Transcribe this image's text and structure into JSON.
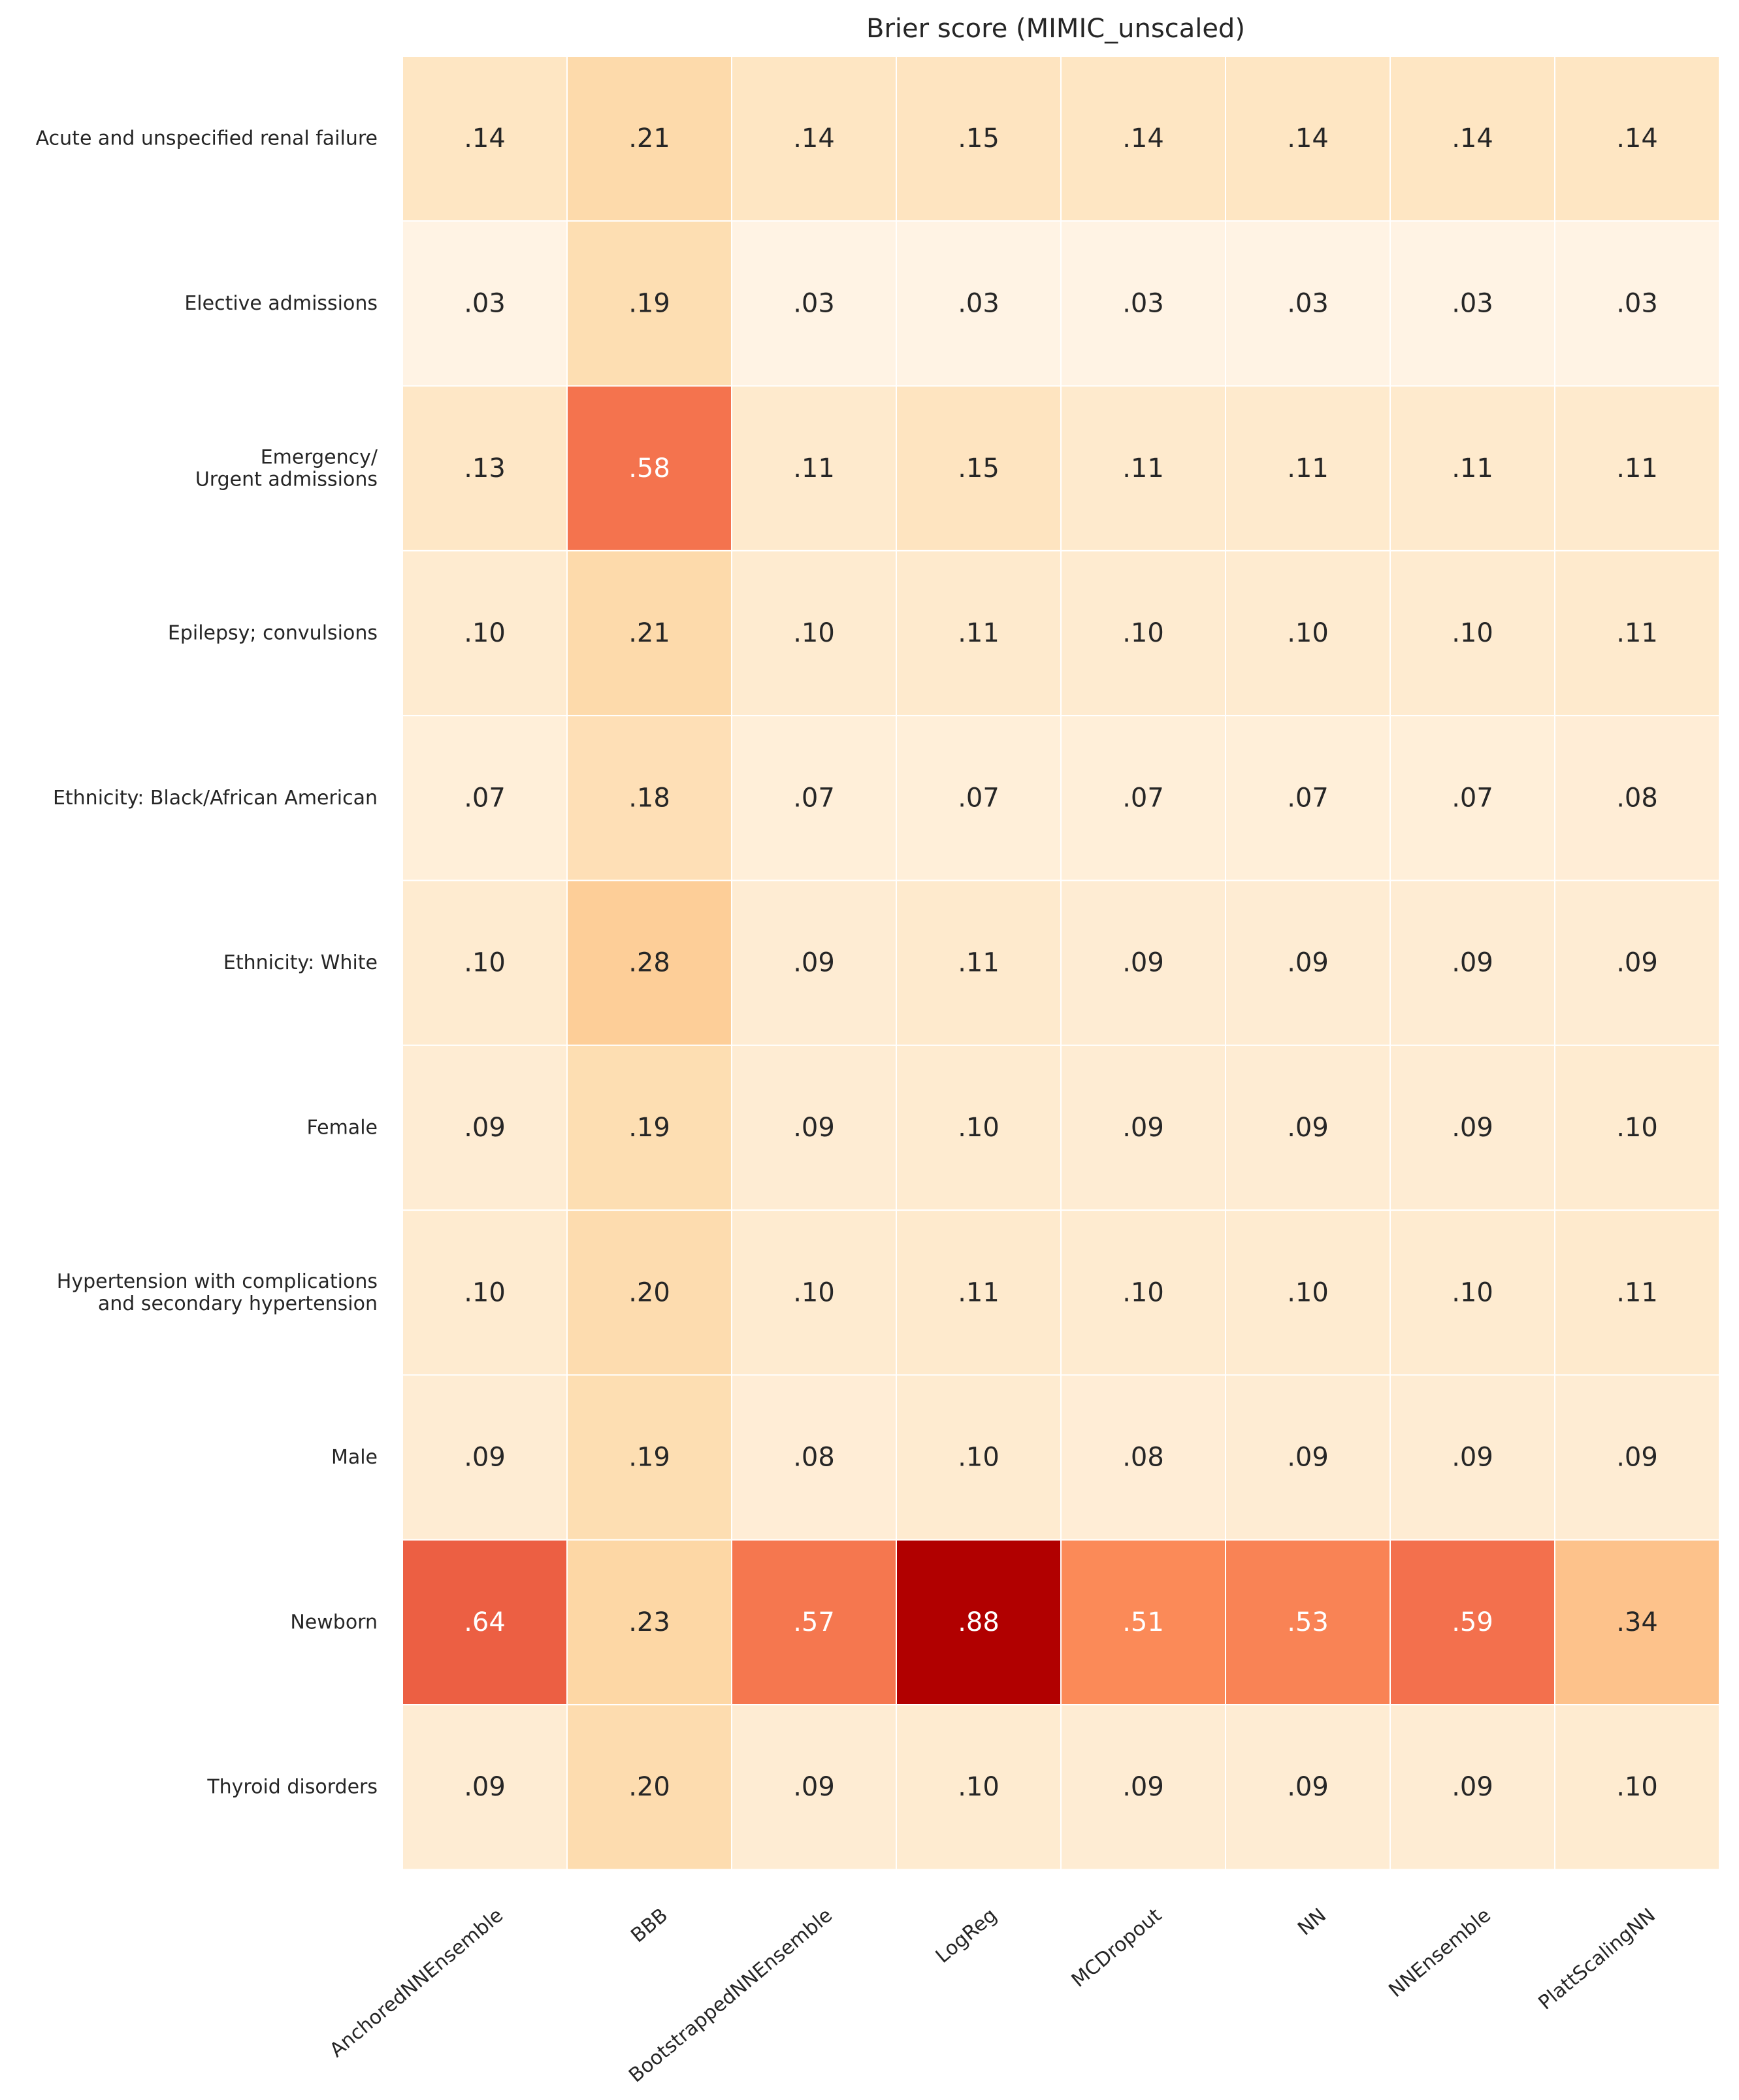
{
  "chart_data": {
    "type": "heatmap",
    "title": "Brier score (MIMIC_unscaled)",
    "xlabel": "",
    "ylabel": "",
    "columns": [
      "AnchoredNNEnsemble",
      "BBB",
      "BootstrappedNNEnsemble",
      "LogReg",
      "MCDropout",
      "NN",
      "NNEnsemble",
      "PlattScalingNN"
    ],
    "rows": [
      [
        "Acute and unspecified renal failure"
      ],
      [
        "Elective admissions"
      ],
      [
        "Emergency/",
        "Urgent admissions"
      ],
      [
        "Epilepsy; convulsions"
      ],
      [
        "Ethnicity: Black/African American"
      ],
      [
        "Ethnicity: White"
      ],
      [
        "Female"
      ],
      [
        "Hypertension with complications",
        "and secondary hypertension"
      ],
      [
        "Male"
      ],
      [
        "Newborn"
      ],
      [
        "Thyroid disorders"
      ]
    ],
    "values": [
      [
        0.14,
        0.21,
        0.14,
        0.15,
        0.14,
        0.14,
        0.14,
        0.14
      ],
      [
        0.03,
        0.19,
        0.03,
        0.03,
        0.03,
        0.03,
        0.03,
        0.03
      ],
      [
        0.13,
        0.58,
        0.11,
        0.15,
        0.11,
        0.11,
        0.11,
        0.11
      ],
      [
        0.1,
        0.21,
        0.1,
        0.11,
        0.1,
        0.1,
        0.1,
        0.11
      ],
      [
        0.07,
        0.18,
        0.07,
        0.07,
        0.07,
        0.07,
        0.07,
        0.08
      ],
      [
        0.1,
        0.28,
        0.09,
        0.11,
        0.09,
        0.09,
        0.09,
        0.09
      ],
      [
        0.09,
        0.19,
        0.09,
        0.1,
        0.09,
        0.09,
        0.09,
        0.1
      ],
      [
        0.1,
        0.2,
        0.1,
        0.11,
        0.1,
        0.1,
        0.1,
        0.11
      ],
      [
        0.09,
        0.19,
        0.08,
        0.1,
        0.08,
        0.09,
        0.09,
        0.09
      ],
      [
        0.64,
        0.23,
        0.57,
        0.88,
        0.51,
        0.53,
        0.59,
        0.34
      ],
      [
        0.09,
        0.2,
        0.09,
        0.1,
        0.09,
        0.09,
        0.09,
        0.1
      ]
    ],
    "cell_labels": [
      [
        ".14",
        ".21",
        ".14",
        ".15",
        ".14",
        ".14",
        ".14",
        ".14"
      ],
      [
        ".03",
        ".19",
        ".03",
        ".03",
        ".03",
        ".03",
        ".03",
        ".03"
      ],
      [
        ".13",
        ".58",
        ".11",
        ".15",
        ".11",
        ".11",
        ".11",
        ".11"
      ],
      [
        ".10",
        ".21",
        ".10",
        ".11",
        ".10",
        ".10",
        ".10",
        ".11"
      ],
      [
        ".07",
        ".18",
        ".07",
        ".07",
        ".07",
        ".07",
        ".07",
        ".08"
      ],
      [
        ".10",
        ".28",
        ".09",
        ".11",
        ".09",
        ".09",
        ".09",
        ".09"
      ],
      [
        ".09",
        ".19",
        ".09",
        ".10",
        ".09",
        ".09",
        ".09",
        ".10"
      ],
      [
        ".10",
        ".20",
        ".10",
        ".11",
        ".10",
        ".10",
        ".10",
        ".11"
      ],
      [
        ".09",
        ".19",
        ".08",
        ".10",
        ".08",
        ".09",
        ".09",
        ".09"
      ],
      [
        ".64",
        ".23",
        ".57",
        ".88",
        ".51",
        ".53",
        ".59",
        ".34"
      ],
      [
        ".09",
        ".20",
        ".09",
        ".10",
        ".09",
        ".09",
        ".09",
        ".10"
      ]
    ],
    "value_range": [
      0,
      1
    ],
    "colormap": {
      "name": "OrRd",
      "stops": [
        {
          "at": 0.0,
          "color": "#fff7ec"
        },
        {
          "at": 0.05,
          "color": "#fff1df"
        },
        {
          "at": 0.125,
          "color": "#fee8c8"
        },
        {
          "at": 0.25,
          "color": "#fdd49e"
        },
        {
          "at": 0.375,
          "color": "#fdbb84"
        },
        {
          "at": 0.5,
          "color": "#fc8d59"
        },
        {
          "at": 0.625,
          "color": "#ef6548"
        },
        {
          "at": 0.75,
          "color": "#d7301f"
        },
        {
          "at": 0.875,
          "color": "#b30000"
        },
        {
          "at": 1.0,
          "color": "#7f0000"
        }
      ]
    },
    "cell_border_color": "#ffffff",
    "text_color_dark": "#262626",
    "text_color_light": "#ffffff",
    "light_text_threshold": 0.45,
    "grid": false,
    "legend": "none"
  }
}
